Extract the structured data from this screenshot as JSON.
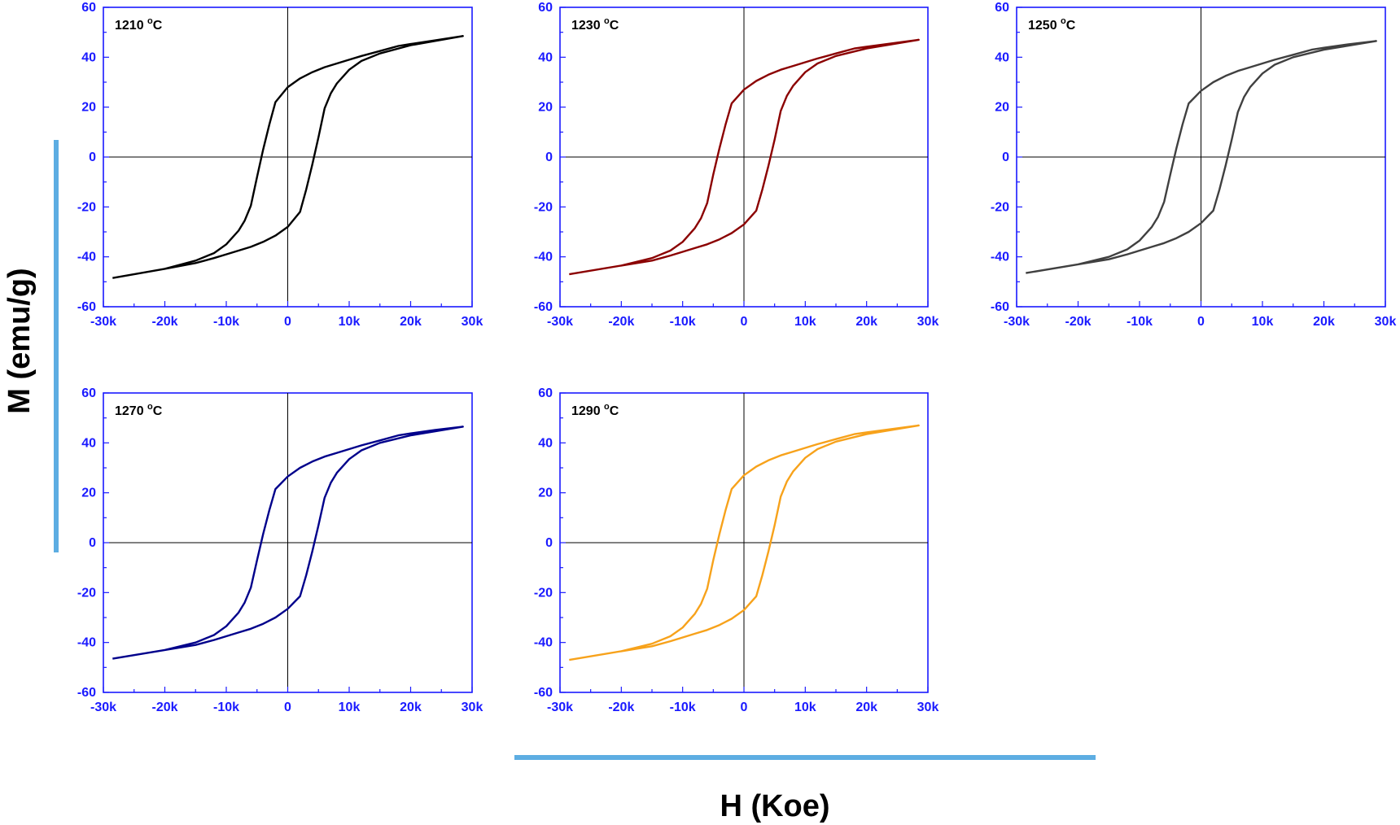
{
  "figure": {
    "ylabel": "M (emu/g)",
    "xlabel": "H (Koe)",
    "accent_bar_color": "#5dade2"
  },
  "chart_data": [
    {
      "type": "line",
      "title": "1210 °C",
      "title_main": "1210 ",
      "title_sup": "o",
      "title_unit": "C",
      "color": "#000000",
      "xlim": [
        -30000,
        30000
      ],
      "ylim": [
        -60,
        60
      ],
      "x_ticks": [
        -30000,
        -20000,
        -10000,
        0,
        10000,
        20000,
        30000
      ],
      "x_tick_labels": [
        "-30k",
        "-20k",
        "-10k",
        "0",
        "10k",
        "20k",
        "30k"
      ],
      "y_ticks": [
        -60,
        -40,
        -20,
        0,
        20,
        40,
        60
      ],
      "y_tick_labels": [
        "-60",
        "-40",
        "-20",
        "0",
        "20",
        "40",
        "60"
      ],
      "grid": false,
      "series": [
        {
          "x": [
            -28500,
            -20000,
            -15000,
            -12000,
            -10000,
            -8000,
            -7000,
            -6000,
            -5000,
            -4000,
            -3000,
            -2000,
            0,
            2000,
            4000,
            6000,
            8000,
            10000,
            12000,
            15000,
            18000,
            20000,
            24000,
            28500,
            20000,
            15000,
            12000,
            10000,
            8000,
            7000,
            6000,
            5000,
            4000,
            3000,
            2000,
            0,
            -2000,
            -4000,
            -6000,
            -8000,
            -10000,
            -12000,
            -15000,
            -20000,
            -28500
          ],
          "y": [
            -48.5,
            -44.8,
            -41.5,
            -38.5,
            -35,
            -29.5,
            -25.5,
            -19.5,
            -8,
            3,
            13,
            22,
            28,
            31.5,
            34,
            36,
            37.5,
            39,
            40.5,
            42.5,
            44.5,
            45.3,
            46.8,
            48.5,
            44.8,
            41.5,
            38.5,
            35,
            29.5,
            25.5,
            19.5,
            8,
            -3,
            -13,
            -22,
            -28,
            -31.5,
            -34,
            -36,
            -37.5,
            -39,
            -40.5,
            -42.5,
            -44.8,
            -48.5
          ]
        }
      ]
    },
    {
      "type": "line",
      "title": "1230 °C",
      "title_main": "1230 ",
      "title_sup": "o",
      "title_unit": "C",
      "color": "#8b0000",
      "xlim": [
        -30000,
        30000
      ],
      "ylim": [
        -60,
        60
      ],
      "x_ticks": [
        -30000,
        -20000,
        -10000,
        0,
        10000,
        20000,
        30000
      ],
      "x_tick_labels": [
        "-30k",
        "-20k",
        "-10k",
        "0",
        "10k",
        "20k",
        "30k"
      ],
      "y_ticks": [
        -60,
        -40,
        -20,
        0,
        20,
        40,
        60
      ],
      "y_tick_labels": [
        "-60",
        "-40",
        "-20",
        "0",
        "20",
        "40",
        "60"
      ],
      "grid": false,
      "series": [
        {
          "x": [
            -28500,
            -20000,
            -15000,
            -12000,
            -10000,
            -8000,
            -7000,
            -6000,
            -5000,
            -4000,
            -3000,
            -2000,
            0,
            2000,
            4000,
            6000,
            8000,
            10000,
            12000,
            15000,
            18000,
            20000,
            24000,
            28500,
            20000,
            15000,
            12000,
            10000,
            8000,
            7000,
            6000,
            5000,
            4000,
            3000,
            2000,
            0,
            -2000,
            -4000,
            -6000,
            -8000,
            -10000,
            -12000,
            -15000,
            -20000,
            -28500
          ],
          "y": [
            -47,
            -43.5,
            -40.5,
            -37.5,
            -34,
            -28.5,
            -24.5,
            -18.5,
            -7,
            3.5,
            13,
            21.5,
            27,
            30.5,
            33,
            35,
            36.5,
            38,
            39.5,
            41.5,
            43.5,
            44.2,
            45.5,
            47,
            43.5,
            40.5,
            37.5,
            34,
            28.5,
            24.5,
            18.5,
            7,
            -3.5,
            -13,
            -21.5,
            -27,
            -30.5,
            -33,
            -35,
            -36.5,
            -38,
            -39.5,
            -41.5,
            -43.5,
            -47
          ]
        }
      ]
    },
    {
      "type": "line",
      "title": "1250 °C",
      "title_main": "1250 ",
      "title_sup": "o",
      "title_unit": "C",
      "color": "#404040",
      "xlim": [
        -30000,
        30000
      ],
      "ylim": [
        -60,
        60
      ],
      "x_ticks": [
        -30000,
        -20000,
        -10000,
        0,
        10000,
        20000,
        30000
      ],
      "x_tick_labels": [
        "-30k",
        "-20k",
        "-10k",
        "0",
        "10k",
        "20k",
        "30k"
      ],
      "y_ticks": [
        -60,
        -40,
        -20,
        0,
        20,
        40,
        60
      ],
      "y_tick_labels": [
        "-60",
        "-40",
        "-20",
        "0",
        "20",
        "40",
        "60"
      ],
      "grid": false,
      "series": [
        {
          "x": [
            -28500,
            -20000,
            -15000,
            -12000,
            -10000,
            -8000,
            -7000,
            -6000,
            -5000,
            -4000,
            -3000,
            -2000,
            0,
            2000,
            4000,
            6000,
            8000,
            10000,
            12000,
            15000,
            18000,
            20000,
            24000,
            28500,
            20000,
            15000,
            12000,
            10000,
            8000,
            7000,
            6000,
            5000,
            4000,
            3000,
            2000,
            0,
            -2000,
            -4000,
            -6000,
            -8000,
            -10000,
            -12000,
            -15000,
            -20000,
            -28500
          ],
          "y": [
            -46.5,
            -43,
            -40,
            -37,
            -33.5,
            -28,
            -24,
            -18,
            -7,
            3.5,
            13,
            21.5,
            26.5,
            30,
            32.5,
            34.5,
            36,
            37.5,
            39,
            41,
            43,
            43.8,
            45.2,
            46.5,
            43,
            40,
            37,
            33.5,
            28,
            24,
            18,
            7,
            -3.5,
            -13,
            -21.5,
            -26.5,
            -30,
            -32.5,
            -34.5,
            -36,
            -37.5,
            -39,
            -41,
            -43,
            -46.5
          ]
        }
      ]
    },
    {
      "type": "line",
      "title": "1270 °C",
      "title_main": "1270 ",
      "title_sup": "o",
      "title_unit": "C",
      "color": "#00008b",
      "xlim": [
        -30000,
        30000
      ],
      "ylim": [
        -60,
        60
      ],
      "x_ticks": [
        -30000,
        -20000,
        -10000,
        0,
        10000,
        20000,
        30000
      ],
      "x_tick_labels": [
        "-30k",
        "-20k",
        "-10k",
        "0",
        "10k",
        "20k",
        "30k"
      ],
      "y_ticks": [
        -60,
        -40,
        -20,
        0,
        20,
        40,
        60
      ],
      "y_tick_labels": [
        "-60",
        "-40",
        "-20",
        "0",
        "20",
        "40",
        "60"
      ],
      "grid": false,
      "series": [
        {
          "x": [
            -28500,
            -20000,
            -15000,
            -12000,
            -10000,
            -8000,
            -7000,
            -6000,
            -5000,
            -4000,
            -3000,
            -2000,
            0,
            2000,
            4000,
            6000,
            8000,
            10000,
            12000,
            15000,
            18000,
            20000,
            24000,
            28500,
            20000,
            15000,
            12000,
            10000,
            8000,
            7000,
            6000,
            5000,
            4000,
            3000,
            2000,
            0,
            -2000,
            -4000,
            -6000,
            -8000,
            -10000,
            -12000,
            -15000,
            -20000,
            -28500
          ],
          "y": [
            -46.5,
            -43,
            -40,
            -37,
            -33.5,
            -28,
            -24,
            -18,
            -7,
            3.5,
            13,
            21.5,
            26.5,
            30,
            32.5,
            34.5,
            36,
            37.5,
            39,
            41,
            43,
            43.8,
            45.2,
            46.5,
            43,
            40,
            37,
            33.5,
            28,
            24,
            18,
            7,
            -3.5,
            -13,
            -21.5,
            -26.5,
            -30,
            -32.5,
            -34.5,
            -36,
            -37.5,
            -39,
            -41,
            -43,
            -46.5
          ]
        }
      ]
    },
    {
      "type": "line",
      "title": "1290 °C",
      "title_main": "1290 ",
      "title_sup": "o",
      "title_unit": "C",
      "color": "#f7a21b",
      "xlim": [
        -30000,
        30000
      ],
      "ylim": [
        -60,
        60
      ],
      "x_ticks": [
        -30000,
        -20000,
        -10000,
        0,
        10000,
        20000,
        30000
      ],
      "x_tick_labels": [
        "-30k",
        "-20k",
        "-10k",
        "0",
        "10k",
        "20k",
        "30k"
      ],
      "y_ticks": [
        -60,
        -40,
        -20,
        0,
        20,
        40,
        60
      ],
      "y_tick_labels": [
        "-60",
        "-40",
        "-20",
        "0",
        "20",
        "40",
        "60"
      ],
      "grid": false,
      "series": [
        {
          "x": [
            -28500,
            -20000,
            -15000,
            -12000,
            -10000,
            -8000,
            -7000,
            -6000,
            -5000,
            -4000,
            -3000,
            -2000,
            0,
            2000,
            4000,
            6000,
            8000,
            10000,
            12000,
            15000,
            18000,
            20000,
            24000,
            28500,
            20000,
            15000,
            12000,
            10000,
            8000,
            7000,
            6000,
            5000,
            4000,
            3000,
            2000,
            0,
            -2000,
            -4000,
            -6000,
            -8000,
            -10000,
            -12000,
            -15000,
            -20000,
            -28500
          ],
          "y": [
            -47,
            -43.5,
            -40.5,
            -37.5,
            -34,
            -28.5,
            -24.5,
            -18.5,
            -7,
            3.5,
            13,
            21.5,
            27,
            30.5,
            33,
            35,
            36.5,
            38,
            39.5,
            41.5,
            43.5,
            44.2,
            45.5,
            47,
            43.5,
            40.5,
            37.5,
            34,
            28.5,
            24.5,
            18.5,
            7,
            -3.5,
            -13,
            -21.5,
            -27,
            -30.5,
            -33,
            -35,
            -36.5,
            -38,
            -39.5,
            -41.5,
            -43.5,
            -47
          ]
        }
      ]
    }
  ]
}
